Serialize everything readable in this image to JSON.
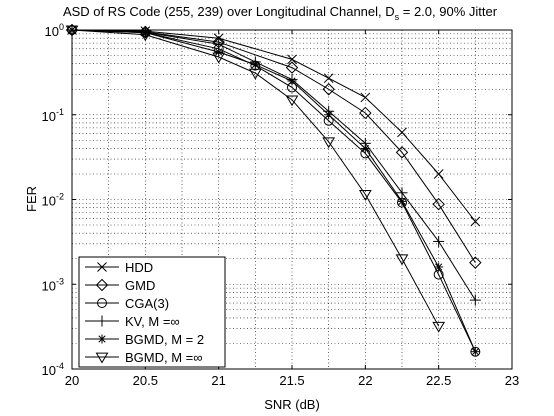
{
  "chart_data": {
    "type": "line",
    "title": "ASD of RS Code (255, 239) over Longitudinal Channel, D",
    "title_subscript": "s",
    "title_suffix": " = 2.0, 90% Jitter",
    "xlabel": "SNR (dB)",
    "ylabel": "FER",
    "xlim": [
      20,
      23
    ],
    "ylim": [
      0.0001,
      1
    ],
    "yscale": "log",
    "grid": true,
    "legend_position": "bottom-left",
    "x_ticks": [
      "20",
      "20.5",
      "21",
      "21.5",
      "22",
      "22.5",
      "23"
    ],
    "y_ticks": [
      {
        "base": "10",
        "exp": "0"
      },
      {
        "base": "10",
        "exp": "-1"
      },
      {
        "base": "10",
        "exp": "-2"
      },
      {
        "base": "10",
        "exp": "-3"
      },
      {
        "base": "10",
        "exp": "-4"
      }
    ],
    "series": [
      {
        "name": "HDD",
        "marker": "x",
        "x": [
          20,
          20.5,
          21,
          21.5,
          21.75,
          22,
          22.25,
          22.5,
          22.75
        ],
        "y": [
          1.0,
          0.97,
          0.8,
          0.45,
          0.27,
          0.16,
          0.062,
          0.02,
          0.0055
        ]
      },
      {
        "name": "GMD",
        "marker": "diamond",
        "x": [
          20,
          20.5,
          21,
          21.5,
          21.75,
          22,
          22.25,
          22.5,
          22.75
        ],
        "y": [
          1.0,
          0.95,
          0.72,
          0.36,
          0.2,
          0.105,
          0.036,
          0.0088,
          0.0018
        ]
      },
      {
        "name": "CGA(3)",
        "marker": "circle",
        "x": [
          20,
          20.5,
          21,
          21.25,
          21.5,
          21.75,
          22,
          22.25,
          22.5,
          22.75
        ],
        "y": [
          1.0,
          0.93,
          0.6,
          0.38,
          0.21,
          0.085,
          0.035,
          0.0092,
          0.0013,
          0.00016
        ]
      },
      {
        "name": "KV, M =∞",
        "marker": "plus",
        "x": [
          20,
          20.5,
          21,
          21.25,
          21.5,
          21.75,
          22,
          22.25,
          22.5,
          22.75
        ],
        "y": [
          1.0,
          0.94,
          0.68,
          0.42,
          0.26,
          0.11,
          0.046,
          0.012,
          0.0032,
          0.00065
        ]
      },
      {
        "name": "BGMD, M = 2",
        "marker": "star",
        "x": [
          20,
          20.5,
          21,
          21.25,
          21.5,
          21.75,
          22,
          22.25,
          22.5,
          22.75
        ],
        "y": [
          1.0,
          0.93,
          0.55,
          0.39,
          0.25,
          0.1,
          0.04,
          0.0095,
          0.0016,
          0.00016
        ]
      },
      {
        "name": "BGMD, M =∞",
        "marker": "triangle-down",
        "x": [
          20,
          20.5,
          21,
          21.25,
          21.5,
          21.75,
          22,
          22.25,
          22.5
        ],
        "y": [
          1.0,
          0.88,
          0.48,
          0.31,
          0.15,
          0.048,
          0.0115,
          0.002,
          0.00032
        ]
      }
    ],
    "colors": {
      "line": "#000000",
      "grid": "#000000",
      "background": "#ffffff"
    }
  }
}
